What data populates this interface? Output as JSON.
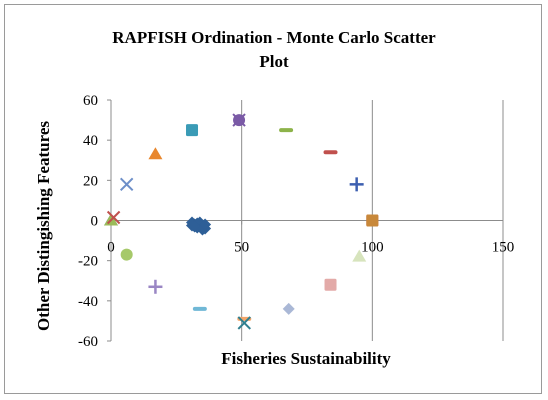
{
  "chart_data": {
    "type": "scatter",
    "title_lines": [
      "RAPFISH Ordination - Monte Carlo Scatter",
      "Plot"
    ],
    "xlabel": "Fisheries Sustainability",
    "ylabel": "Other Distingishing Features",
    "xlim": [
      0,
      150
    ],
    "ylim": [
      -60,
      60
    ],
    "xticks": [
      "0",
      "50",
      "100",
      "150"
    ],
    "yticks": [
      "60",
      "40",
      "20",
      "0",
      "-20",
      "-40",
      "-60"
    ],
    "grid": "vertical",
    "legend": "none",
    "series": [
      {
        "marker": "diamond",
        "color": "#2e5f97",
        "points": [
          [
            31,
            -1
          ],
          [
            32,
            -2
          ],
          [
            33,
            -1.5
          ],
          [
            34,
            -3
          ],
          [
            35,
            -2.5
          ],
          [
            36,
            -4
          ],
          [
            33,
            -3.5
          ],
          [
            34,
            -1
          ],
          [
            32,
            -3
          ],
          [
            35,
            -4.5
          ],
          [
            36,
            -2
          ],
          [
            31,
            -2.5
          ]
        ]
      },
      {
        "marker": "square",
        "color": "#c0504d",
        "points": [
          [
            100,
            0
          ]
        ]
      },
      {
        "marker": "square",
        "color": "#c8883a",
        "points": [
          [
            100,
            0
          ]
        ]
      },
      {
        "marker": "triangle",
        "color": "#4f81bd",
        "points": [
          [
            0,
            0
          ]
        ]
      },
      {
        "marker": "triangle",
        "color": "#9bbb59",
        "points": [
          [
            0,
            0
          ]
        ]
      },
      {
        "marker": "x",
        "color": "#c0504d",
        "points": [
          [
            1,
            1.5
          ]
        ]
      },
      {
        "marker": "square",
        "color": "#3a9bb6",
        "points": [
          [
            31,
            45
          ]
        ]
      },
      {
        "marker": "x",
        "color": "#7a5aa6",
        "points": [
          [
            49,
            50
          ]
        ]
      },
      {
        "marker": "circle",
        "color": "#7a5aa6",
        "points": [
          [
            49,
            50
          ]
        ]
      },
      {
        "marker": "dash",
        "color": "#8db34a",
        "points": [
          [
            67,
            45
          ]
        ]
      },
      {
        "marker": "triangle",
        "color": "#e8872e",
        "points": [
          [
            17,
            33
          ]
        ]
      },
      {
        "marker": "dash",
        "color": "#c0504d",
        "points": [
          [
            84,
            34
          ]
        ]
      },
      {
        "marker": "x",
        "color": "#6d8fc9",
        "points": [
          [
            6,
            18
          ]
        ]
      },
      {
        "marker": "plus",
        "color": "#3d5fb0",
        "points": [
          [
            94,
            18
          ]
        ]
      },
      {
        "marker": "circle",
        "color": "#a6c96a",
        "points": [
          [
            6,
            -17
          ]
        ]
      },
      {
        "marker": "triangle",
        "color": "#d7e4bd",
        "points": [
          [
            95,
            -18
          ]
        ]
      },
      {
        "marker": "plus",
        "color": "#9a86c4",
        "points": [
          [
            17,
            -33
          ]
        ]
      },
      {
        "marker": "square",
        "color": "#e3aaa8",
        "points": [
          [
            84,
            -32
          ]
        ]
      },
      {
        "marker": "dash",
        "color": "#70b8d6",
        "points": [
          [
            34,
            -44
          ]
        ]
      },
      {
        "marker": "diamond",
        "color": "#aab8d6",
        "points": [
          [
            68,
            -44
          ]
        ]
      },
      {
        "marker": "dash",
        "color": "#f4a66a",
        "points": [
          [
            51,
            -49
          ]
        ]
      },
      {
        "marker": "x",
        "color": "#2f7f8f",
        "points": [
          [
            51,
            -51
          ]
        ]
      }
    ]
  }
}
